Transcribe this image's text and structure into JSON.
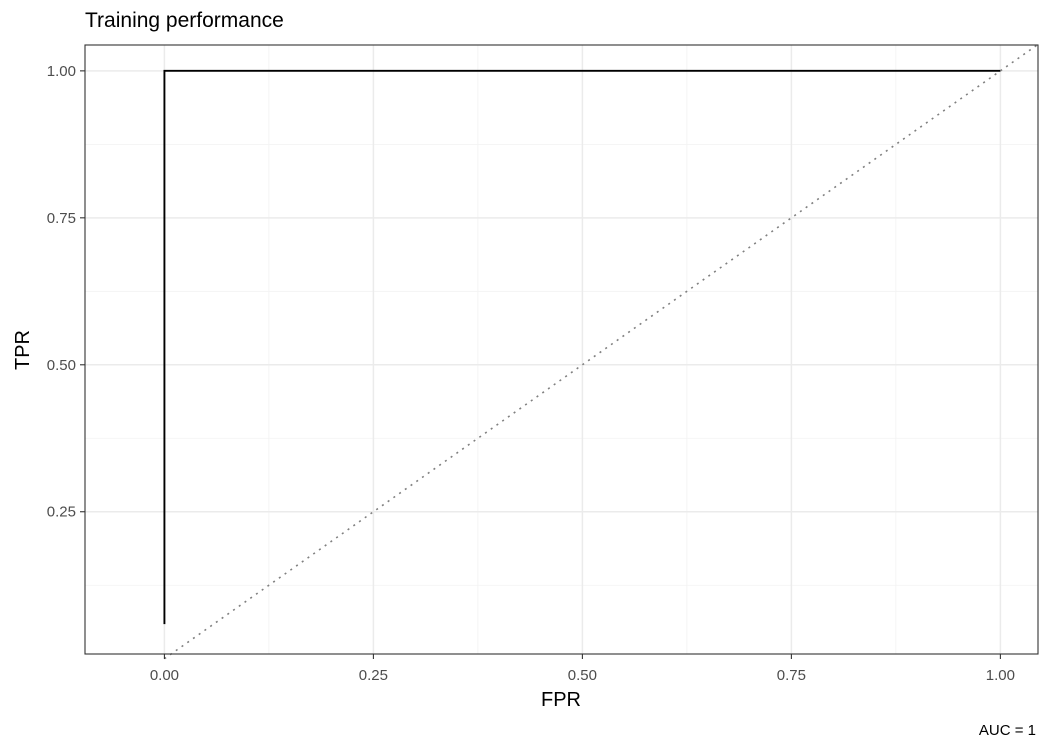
{
  "chart_data": {
    "type": "line",
    "title": "Training performance",
    "xlabel": "FPR",
    "ylabel": "TPR",
    "caption": "AUC = 1",
    "xlim": [
      -0.095,
      1.045
    ],
    "ylim": [
      0.008,
      1.044
    ],
    "x_ticks": [
      0,
      0.25,
      0.5,
      0.75,
      1
    ],
    "x_tick_labels": [
      "0.00",
      "0.25",
      "0.50",
      "0.75",
      "1.00"
    ],
    "y_ticks": [
      0.25,
      0.5,
      0.75,
      1
    ],
    "y_tick_labels": [
      "0.25",
      "0.50",
      "0.75",
      "1.00"
    ],
    "grid": true,
    "series": [
      {
        "style": "solid",
        "color": "#000000",
        "points": [
          [
            0,
            0.0588
          ],
          [
            0,
            1
          ],
          [
            1,
            1
          ]
        ]
      },
      {
        "style": "dotted",
        "color": "#808080",
        "points": [
          [
            0,
            0
          ],
          [
            1.045,
            1.045
          ]
        ]
      }
    ]
  }
}
